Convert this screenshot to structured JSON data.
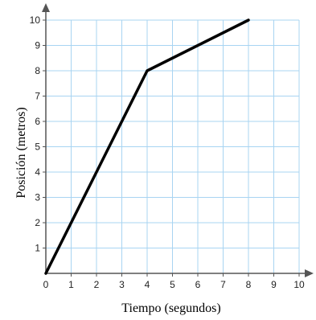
{
  "chart_data": {
    "type": "line",
    "title": "",
    "xlabel": "Tiempo (segundos)",
    "ylabel": "Posición (metros)",
    "xlim": [
      0,
      10
    ],
    "ylim": [
      0,
      10
    ],
    "x_ticks": [
      "0",
      "1",
      "2",
      "3",
      "4",
      "5",
      "6",
      "7",
      "8",
      "9",
      "10"
    ],
    "y_ticks": [
      "1",
      "2",
      "3",
      "4",
      "5",
      "6",
      "7",
      "8",
      "9",
      "10"
    ],
    "grid": true,
    "series": [
      {
        "x": [
          0,
          4,
          8
        ],
        "y": [
          0,
          8,
          10
        ]
      }
    ],
    "colors": {
      "grid": "#a8d4f2",
      "line": "#000000",
      "axis": "#555555"
    }
  }
}
